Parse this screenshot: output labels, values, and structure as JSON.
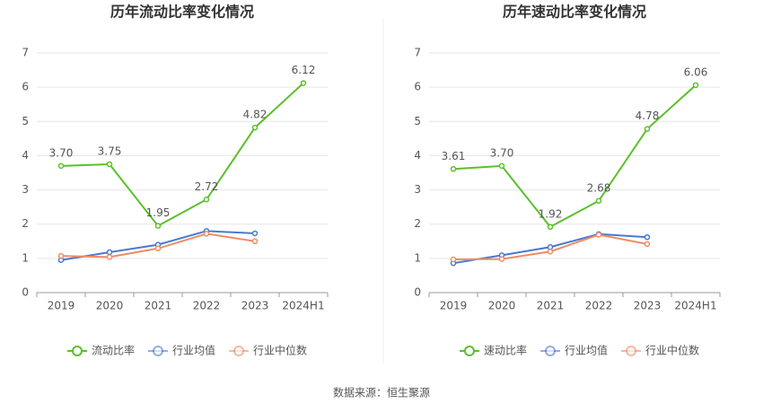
{
  "chart_data": [
    {
      "type": "line",
      "title": "历年流动比率变化情况",
      "categories": [
        "2019",
        "2020",
        "2021",
        "2022",
        "2023",
        "2024H1"
      ],
      "ylim": [
        0,
        7
      ],
      "yticks": [
        0,
        1,
        2,
        3,
        4,
        5,
        6,
        7
      ],
      "grid": true,
      "legend": "bottom",
      "series": [
        {
          "name": "流动比率",
          "color": "#5cbf2a",
          "values": [
            3.7,
            3.75,
            1.95,
            2.72,
            4.82,
            6.12
          ],
          "value_labels": [
            "3.70",
            "3.75",
            "1.95",
            "2.72",
            "4.82",
            "6.12"
          ]
        },
        {
          "name": "行业均值",
          "color": "#4a78d0",
          "values": [
            0.95,
            1.18,
            1.4,
            1.8,
            1.73,
            null
          ]
        },
        {
          "name": "行业中位数",
          "color": "#f08c64",
          "values": [
            1.07,
            1.04,
            1.29,
            1.72,
            1.5,
            null
          ]
        }
      ]
    },
    {
      "type": "line",
      "title": "历年速动比率变化情况",
      "categories": [
        "2019",
        "2020",
        "2021",
        "2022",
        "2023",
        "2024H1"
      ],
      "ylim": [
        0,
        7
      ],
      "yticks": [
        0,
        1,
        2,
        3,
        4,
        5,
        6,
        7
      ],
      "grid": true,
      "legend": "bottom",
      "series": [
        {
          "name": "速动比率",
          "color": "#5cbf2a",
          "values": [
            3.61,
            3.7,
            1.92,
            2.68,
            4.78,
            6.06
          ],
          "value_labels": [
            "3.61",
            "3.70",
            "1.92",
            "2.68",
            "4.78",
            "6.06"
          ]
        },
        {
          "name": "行业均值",
          "color": "#4a78d0",
          "values": [
            0.86,
            1.09,
            1.33,
            1.71,
            1.62,
            null
          ]
        },
        {
          "name": "行业中位数",
          "color": "#f08c64",
          "values": [
            0.97,
            0.98,
            1.2,
            1.69,
            1.42,
            null
          ]
        }
      ]
    }
  ],
  "source": "数据来源：恒生聚源"
}
